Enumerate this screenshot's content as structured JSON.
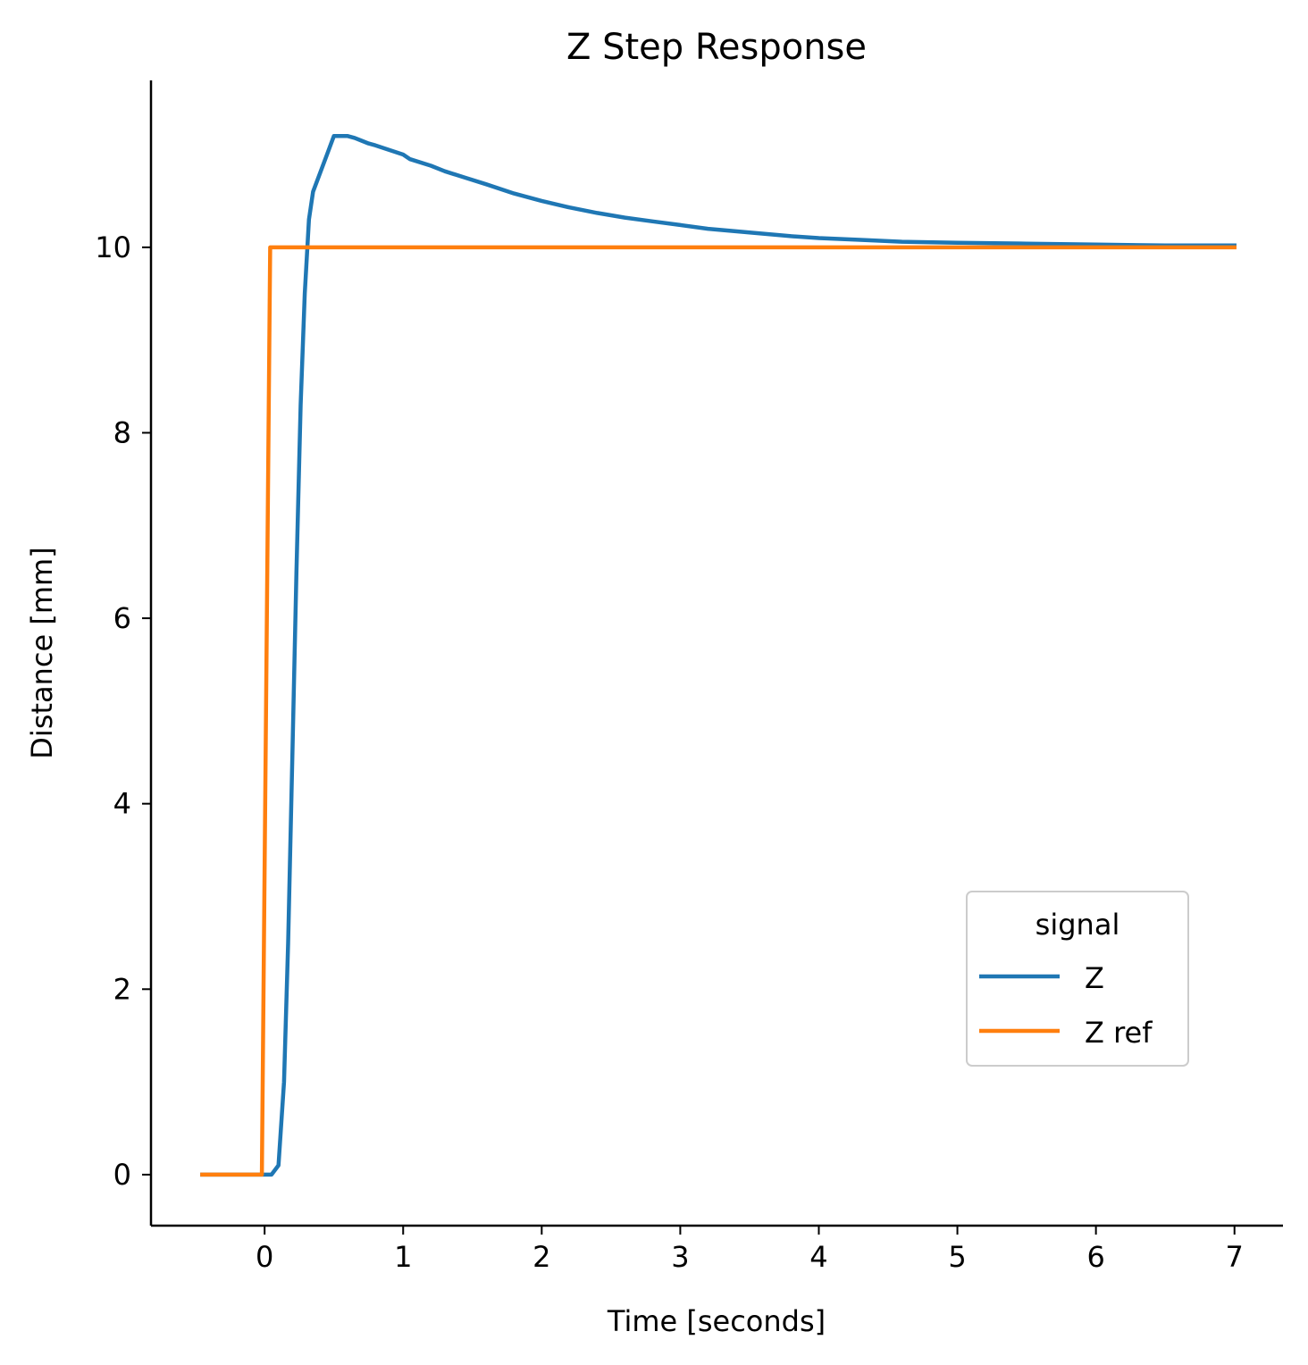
{
  "chart_data": {
    "type": "line",
    "title": "Z Step Response",
    "xlabel": "Time [seconds]",
    "ylabel": "Distance [mm]",
    "xlim": [
      -0.82,
      7.35
    ],
    "ylim": [
      -0.55,
      11.8
    ],
    "xticks": [
      0,
      1,
      2,
      3,
      4,
      5,
      6,
      7
    ],
    "yticks": [
      0,
      2,
      4,
      6,
      8,
      10
    ],
    "grid": false,
    "legend": {
      "title": "signal",
      "placement": "lower-right"
    },
    "series": [
      {
        "name": "Z",
        "color": "#1f77b4",
        "x": [
          -0.45,
          -0.2,
          -0.1,
          0.0,
          0.05,
          0.1,
          0.14,
          0.17,
          0.2,
          0.23,
          0.26,
          0.29,
          0.32,
          0.35,
          0.4,
          0.45,
          0.5,
          0.55,
          0.6,
          0.65,
          0.7,
          0.75,
          0.8,
          0.9,
          1.0,
          1.05,
          1.2,
          1.3,
          1.45,
          1.6,
          1.8,
          2.0,
          2.2,
          2.4,
          2.6,
          2.8,
          3.0,
          3.2,
          3.5,
          3.8,
          4.0,
          4.3,
          4.6,
          5.0,
          5.5,
          6.0,
          6.5,
          7.0
        ],
        "y": [
          0.0,
          0.0,
          0.0,
          0.0,
          0.0,
          0.1,
          1.0,
          2.5,
          4.5,
          6.5,
          8.3,
          9.5,
          10.3,
          10.6,
          10.8,
          11.0,
          11.2,
          11.2,
          11.2,
          11.18,
          11.15,
          11.12,
          11.1,
          11.05,
          11.0,
          10.95,
          10.88,
          10.82,
          10.75,
          10.68,
          10.58,
          10.5,
          10.43,
          10.37,
          10.32,
          10.28,
          10.24,
          10.2,
          10.16,
          10.12,
          10.1,
          10.08,
          10.06,
          10.05,
          10.04,
          10.03,
          10.02,
          10.02
        ]
      },
      {
        "name": "Z ref",
        "color": "#ff7f0e",
        "x": [
          -0.45,
          -0.02,
          0.04,
          7.0
        ],
        "y": [
          0.0,
          0.0,
          10.0,
          10.0
        ]
      }
    ]
  }
}
